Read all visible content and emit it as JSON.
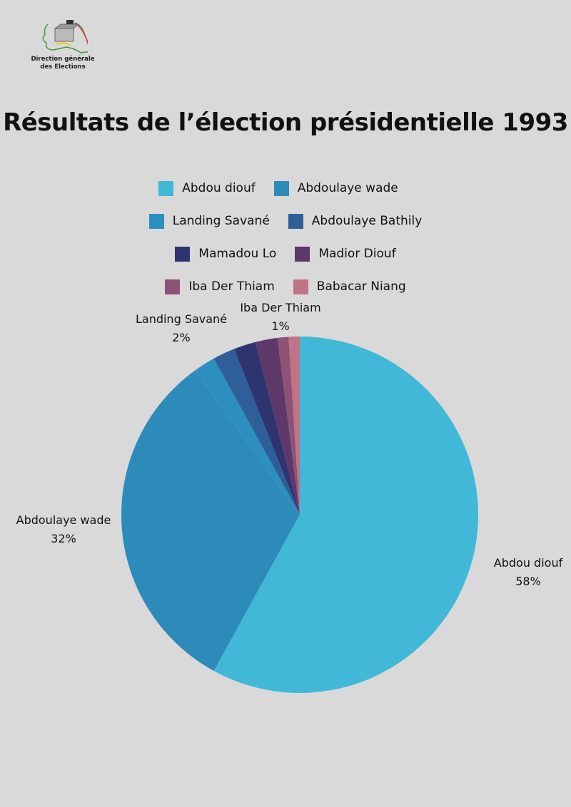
{
  "logo": {
    "line1": "Direction générale",
    "line2": "des Elections"
  },
  "chart_data": {
    "type": "pie",
    "title": "Résultats de l’élection présidentielle 1993",
    "legend_position": "top",
    "start": "12 o'clock, clockwise",
    "categories": [
      "Abdou diouf",
      "Abdoulaye wade",
      "Landing Savané",
      "Abdoulaye Bathily",
      "Mamadou Lo",
      "Madior Diouf",
      "Iba Der Thiam",
      "Babacar Niang"
    ],
    "values": [
      58,
      32,
      2,
      2,
      2,
      2,
      1,
      1
    ],
    "colors": [
      "#41b8d7",
      "#2d8bba",
      "#2d8fbe",
      "#2f5f98",
      "#2e3470",
      "#5d3869",
      "#8d5275",
      "#c07386"
    ],
    "data_labels": [
      {
        "name": "Abdou diouf",
        "value": "58%"
      },
      {
        "name": "Abdoulaye wade",
        "value": "32%"
      },
      {
        "name": "Landing Savané",
        "value": "2%"
      },
      {
        "name": "Iba Der Thiam",
        "value": "1%"
      }
    ]
  }
}
